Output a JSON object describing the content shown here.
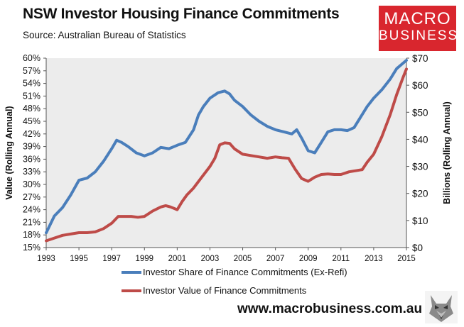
{
  "header": {
    "title": "NSW Investor Housing Finance Commitments",
    "source": "Source: Australian Bureau of Statistics"
  },
  "logo": {
    "line1": "MACRO",
    "line2": "BUSINESS"
  },
  "footer": {
    "website": "www.macrobusiness.com.au"
  },
  "colors": {
    "share": "#4a7ebb",
    "value": "#be4b48",
    "plot_bg": "#ececec",
    "logo_bg": "#d9262e"
  },
  "chart_data": {
    "type": "line",
    "xlabel": "",
    "ylabel_left": "Value (Rolling Annual)",
    "ylabel_right": "Billions (Rolling Annual)",
    "xlim": [
      1993,
      2015
    ],
    "ylim_left": [
      15,
      60
    ],
    "ylim_right": [
      0,
      70
    ],
    "x_ticks": [
      "1993",
      "1995",
      "1997",
      "1999",
      "2001",
      "2003",
      "2005",
      "2007",
      "2009",
      "2011",
      "2013",
      "2015"
    ],
    "y_left_ticks": [
      "15%",
      "18%",
      "21%",
      "24%",
      "27%",
      "30%",
      "33%",
      "36%",
      "39%",
      "42%",
      "45%",
      "48%",
      "51%",
      "54%",
      "57%",
      "60%"
    ],
    "y_right_ticks": [
      "$0",
      "$10",
      "$20",
      "$30",
      "$40",
      "$50",
      "$60",
      "$70"
    ],
    "grid": false,
    "legend_position": "bottom",
    "series": [
      {
        "name": "Investor Share of Finance Commitments (Ex-Refi)",
        "axis": "left",
        "x": [
          1993.0,
          1993.5,
          1994.0,
          1994.5,
          1995.0,
          1995.5,
          1996.0,
          1996.5,
          1997.0,
          1997.3,
          1997.6,
          1998.0,
          1998.5,
          1999.0,
          1999.5,
          2000.0,
          2000.5,
          2001.0,
          2001.5,
          2002.0,
          2002.3,
          2002.6,
          2003.0,
          2003.5,
          2003.9,
          2004.2,
          2004.5,
          2005.0,
          2005.5,
          2006.0,
          2006.5,
          2007.0,
          2007.5,
          2008.0,
          2008.3,
          2008.6,
          2009.0,
          2009.4,
          2009.8,
          2010.2,
          2010.6,
          2011.0,
          2011.4,
          2011.8,
          2012.2,
          2012.6,
          2013.0,
          2013.5,
          2014.0,
          2014.4,
          2014.7,
          2015.0
        ],
        "y": [
          18.5,
          22.5,
          24.5,
          27.5,
          31.0,
          31.5,
          33.0,
          35.5,
          38.5,
          40.5,
          40.0,
          39.0,
          37.5,
          36.8,
          37.5,
          38.8,
          38.5,
          39.3,
          40.0,
          43.0,
          46.5,
          48.5,
          50.5,
          51.8,
          52.2,
          51.5,
          50.0,
          48.5,
          46.5,
          45.0,
          43.8,
          43.0,
          42.5,
          42.0,
          43.0,
          41.0,
          38.0,
          37.5,
          40.0,
          42.5,
          43.0,
          43.0,
          42.8,
          43.5,
          46.0,
          48.5,
          50.5,
          52.5,
          55.0,
          57.5,
          58.5,
          59.5
        ]
      },
      {
        "name": "Investor Value of Finance Commitments",
        "axis": "right",
        "x": [
          1993.0,
          1993.5,
          1994.0,
          1994.5,
          1995.0,
          1995.5,
          1996.0,
          1996.5,
          1997.0,
          1997.4,
          1997.8,
          1998.2,
          1998.6,
          1999.0,
          1999.5,
          2000.0,
          2000.3,
          2000.6,
          2001.0,
          2001.3,
          2001.6,
          2002.0,
          2002.5,
          2003.0,
          2003.3,
          2003.6,
          2003.9,
          2004.2,
          2004.5,
          2005.0,
          2005.5,
          2006.0,
          2006.5,
          2007.0,
          2007.4,
          2007.8,
          2008.2,
          2008.6,
          2009.0,
          2009.4,
          2009.8,
          2010.2,
          2010.6,
          2011.0,
          2011.5,
          2012.0,
          2012.3,
          2012.6,
          2013.0,
          2013.5,
          2014.0,
          2014.4,
          2014.8,
          2015.0
        ],
        "y": [
          2.5,
          3.5,
          4.5,
          5.0,
          5.5,
          5.5,
          5.8,
          7.0,
          9.0,
          11.5,
          11.5,
          11.5,
          11.2,
          11.5,
          13.5,
          15.0,
          15.5,
          15.0,
          14.0,
          17.0,
          19.5,
          22.0,
          26.0,
          30.0,
          33.0,
          38.0,
          38.7,
          38.5,
          36.5,
          34.5,
          34.0,
          33.5,
          33.0,
          33.5,
          33.2,
          33.0,
          29.0,
          25.5,
          24.5,
          26.0,
          27.0,
          27.2,
          27.0,
          27.0,
          28.0,
          28.5,
          28.8,
          31.5,
          34.5,
          41.0,
          49.0,
          56.5,
          63.0,
          66.0
        ]
      }
    ]
  }
}
